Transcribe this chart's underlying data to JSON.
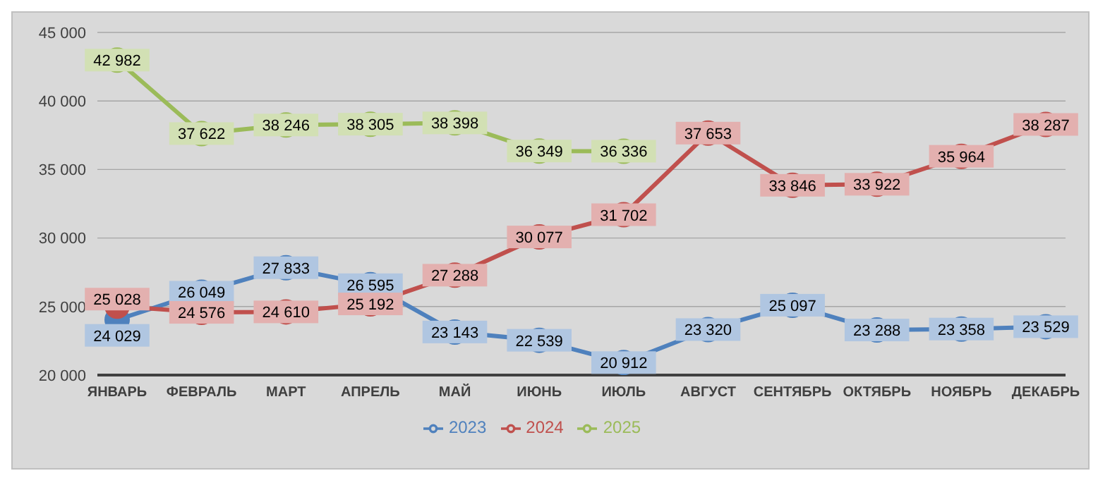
{
  "chart_data": {
    "type": "line",
    "categories": [
      "ЯНВАРЬ",
      "ФЕВРАЛЬ",
      "МАРТ",
      "АПРЕЛЬ",
      "МАЙ",
      "ИЮНЬ",
      "ИЮЛЬ",
      "АВГУСТ",
      "СЕНТЯБРЬ",
      "ОКТЯБРЬ",
      "НОЯБРЬ",
      "ДЕКАБРЬ"
    ],
    "series": [
      {
        "name": "2023",
        "color": "#4f81bd",
        "values": [
          24029,
          26049,
          27833,
          26595,
          23143,
          22539,
          20912,
          23320,
          25097,
          23288,
          23358,
          23529
        ]
      },
      {
        "name": "2024",
        "color": "#c0504d",
        "values": [
          25028,
          24576,
          24610,
          25192,
          27288,
          30077,
          31702,
          37653,
          33846,
          33922,
          35964,
          38287
        ]
      },
      {
        "name": "2025",
        "color": "#9bbb59",
        "values": [
          42982,
          37622,
          38246,
          38305,
          38398,
          36349,
          36336,
          null,
          null,
          null,
          null,
          null
        ]
      }
    ],
    "ylim": [
      20000,
      45000
    ],
    "yticks": [
      {
        "value": 20000,
        "label": "20 000"
      },
      {
        "value": 25000,
        "label": "25 000"
      },
      {
        "value": 30000,
        "label": "30 000"
      },
      {
        "value": 35000,
        "label": "35 000"
      },
      {
        "value": 40000,
        "label": "40 000"
      },
      {
        "value": 45000,
        "label": "45 000"
      }
    ],
    "grid": "y",
    "legend": "bottom",
    "marker": "circle",
    "data_labels": true
  }
}
